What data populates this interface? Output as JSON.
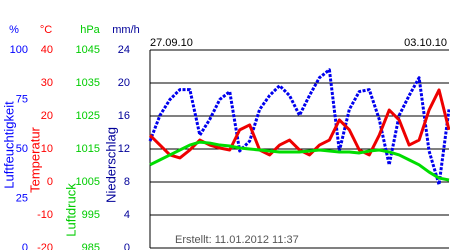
{
  "chart_data": {
    "type": "line",
    "start_label": "27.09.10",
    "end_label": "03.10.10",
    "footer": "Erstellt: 11.01.2012 11:37",
    "axes": [
      {
        "label": "Luftfeuchtigkeit",
        "unit": "%",
        "color": "#0000ff",
        "lim": [
          0,
          100
        ],
        "ticks": [
          0,
          25,
          50,
          75,
          100
        ]
      },
      {
        "label": "Temperatur",
        "unit": "°C",
        "color": "#ff0000",
        "lim": [
          -20,
          40
        ],
        "ticks": [
          -20,
          -10,
          0,
          10,
          20,
          30,
          40
        ]
      },
      {
        "label": "Luftdruck",
        "unit": "hPa",
        "color": "#00cc00",
        "lim": [
          985,
          1045
        ],
        "ticks": [
          985,
          995,
          1005,
          1015,
          1025,
          1035,
          1045
        ]
      },
      {
        "label": "Niederschlag",
        "unit": "mm/h",
        "color": "#000099",
        "lim": [
          0,
          24
        ],
        "ticks": [
          0,
          4,
          8,
          12,
          16,
          20,
          24
        ],
        "grid": true
      }
    ],
    "series": [
      {
        "name": "Luftfeuchtigkeit",
        "axis": 0,
        "color": "#0000ee",
        "dashed": true,
        "values": [
          54,
          67,
          75,
          80,
          80,
          57,
          65,
          75,
          79,
          49,
          54,
          70,
          77,
          82,
          77,
          67,
          77,
          86,
          90,
          49,
          70,
          79,
          80,
          65,
          42,
          67,
          77,
          86,
          49,
          32,
          70
        ]
      },
      {
        "name": "Temperatur",
        "axis": 1,
        "color": "#ee0000",
        "values": [
          14.2,
          11.2,
          8.2,
          7.3,
          9.7,
          12.7,
          11.2,
          10.3,
          9.7,
          15.8,
          17.3,
          9.7,
          8.2,
          11.2,
          12.7,
          9.7,
          8.2,
          11.2,
          12.7,
          18.8,
          15.8,
          9.7,
          8.2,
          14.2,
          21.8,
          18.8,
          11.2,
          12.7,
          21.8,
          27.9,
          15.8
        ]
      },
      {
        "name": "Luftdruck",
        "axis": 2,
        "color": "#00dd00",
        "values": [
          1010.2,
          1011.7,
          1013.2,
          1014.7,
          1016.2,
          1017.1,
          1016.8,
          1016.2,
          1015.9,
          1015.3,
          1015,
          1014.7,
          1014.4,
          1014.1,
          1014.1,
          1014.1,
          1014.4,
          1014.7,
          1014.4,
          1014.1,
          1014.1,
          1013.8,
          1014.4,
          1014.7,
          1014.1,
          1013.2,
          1011.7,
          1010.2,
          1008,
          1006.2,
          1005.6
        ]
      }
    ]
  }
}
